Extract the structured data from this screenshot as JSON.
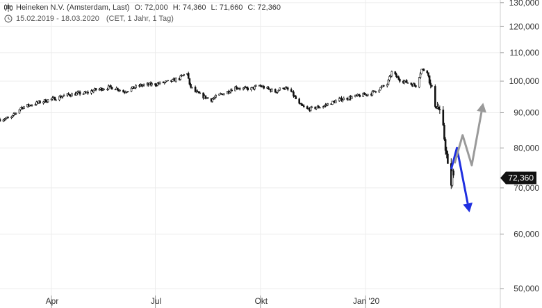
{
  "header": {
    "instrument": "Heineken N.V. (Amsterdam, Last)",
    "open": "O: 72,000",
    "high": "H: 74,360",
    "low": "L: 71,660",
    "close": "C: 72,360",
    "date_range": "15.02.2019 - 18.03.2020",
    "settings": "(CET, 1 Jahr, 1 Tag)",
    "chart_type_icon": "candlestick-icon",
    "range_icon": "clock-icon"
  },
  "last_price_label": "72,360",
  "colors": {
    "candles": "#111111",
    "bearish_arrow": "#1f2fe0",
    "bullish_arrow": "#9a9a9a",
    "last_price_badge": "#111111",
    "grid": "#ececec"
  },
  "chart_data": {
    "type": "candlestick",
    "y_scale": "log",
    "ylim": [
      48000,
      130000
    ],
    "y_ticks": [
      {
        "value": 50000,
        "label": "50,000"
      },
      {
        "value": 60000,
        "label": "60,000"
      },
      {
        "value": 70000,
        "label": "70,000"
      },
      {
        "value": 80000,
        "label": "80,000"
      },
      {
        "value": 90000,
        "label": "90,000"
      },
      {
        "value": 100000,
        "label": "100,000"
      },
      {
        "value": 110000,
        "label": "110,000"
      },
      {
        "value": 120000,
        "label": "120,000"
      },
      {
        "value": 130000,
        "label": "130,000"
      }
    ],
    "x_range": [
      "2019-02-15",
      "2020-04-28"
    ],
    "x_ticks": [
      {
        "date": "2019-04-01",
        "label": "Apr"
      },
      {
        "date": "2019-07-01",
        "label": "Jul"
      },
      {
        "date": "2019-10-01",
        "label": "Okt"
      },
      {
        "date": "2020-01-01",
        "label": "Jan '20"
      }
    ],
    "grid": true,
    "price_path": [
      [
        "2019-02-15",
        88000
      ],
      [
        "2019-02-25",
        88500
      ],
      [
        "2019-03-05",
        91500
      ],
      [
        "2019-03-15",
        92500
      ],
      [
        "2019-03-25",
        93500
      ],
      [
        "2019-04-05",
        94500
      ],
      [
        "2019-04-15",
        95500
      ],
      [
        "2019-04-25",
        96000
      ],
      [
        "2019-05-01",
        96000
      ],
      [
        "2019-05-08",
        97000
      ],
      [
        "2019-05-15",
        97500
      ],
      [
        "2019-05-22",
        98000
      ],
      [
        "2019-05-29",
        97500
      ],
      [
        "2019-06-03",
        96500
      ],
      [
        "2019-06-10",
        97500
      ],
      [
        "2019-06-17",
        98500
      ],
      [
        "2019-06-24",
        98800
      ],
      [
        "2019-07-01",
        99000
      ],
      [
        "2019-07-08",
        99500
      ],
      [
        "2019-07-15",
        100000
      ],
      [
        "2019-07-22",
        101000
      ],
      [
        "2019-07-29",
        103000
      ],
      [
        "2019-07-31",
        98500
      ],
      [
        "2019-08-05",
        96500
      ],
      [
        "2019-08-12",
        95000
      ],
      [
        "2019-08-19",
        94000
      ],
      [
        "2019-08-26",
        95500
      ],
      [
        "2019-09-02",
        96500
      ],
      [
        "2019-09-09",
        98000
      ],
      [
        "2019-09-16",
        97500
      ],
      [
        "2019-09-23",
        97500
      ],
      [
        "2019-09-30",
        98500
      ],
      [
        "2019-10-07",
        97500
      ],
      [
        "2019-10-14",
        96500
      ],
      [
        "2019-10-21",
        98000
      ],
      [
        "2019-10-28",
        96500
      ],
      [
        "2019-11-04",
        92500
      ],
      [
        "2019-11-11",
        91000
      ],
      [
        "2019-11-18",
        91500
      ],
      [
        "2019-11-25",
        92000
      ],
      [
        "2019-12-02",
        93000
      ],
      [
        "2019-12-09",
        94000
      ],
      [
        "2019-12-16",
        94500
      ],
      [
        "2019-12-23",
        95000
      ],
      [
        "2019-12-30",
        95500
      ],
      [
        "2020-01-06",
        96000
      ],
      [
        "2020-01-13",
        97500
      ],
      [
        "2020-01-20",
        99000
      ],
      [
        "2020-01-24",
        103000
      ],
      [
        "2020-01-31",
        100500
      ],
      [
        "2020-02-07",
        99500
      ],
      [
        "2020-02-14",
        98500
      ],
      [
        "2020-02-19",
        104000
      ],
      [
        "2020-02-24",
        103500
      ],
      [
        "2020-02-27",
        98000
      ],
      [
        "2020-03-02",
        93000
      ],
      [
        "2020-03-05",
        91000
      ],
      [
        "2020-03-09",
        85000
      ],
      [
        "2020-03-12",
        78000
      ],
      [
        "2020-03-13",
        75000
      ],
      [
        "2020-03-16",
        71000
      ],
      [
        "2020-03-17",
        73500
      ],
      [
        "2020-03-18",
        72360
      ]
    ],
    "annotations": [
      {
        "kind": "arrow",
        "color": "bearish",
        "points": [
          [
            "2020-03-16",
            74500
          ],
          [
            "2020-03-21",
            80000
          ],
          [
            "2020-04-01",
            64500
          ]
        ]
      },
      {
        "kind": "arrow",
        "color": "bullish",
        "points": [
          [
            "2020-03-19",
            76000
          ],
          [
            "2020-03-26",
            83500
          ],
          [
            "2020-04-03",
            75500
          ],
          [
            "2020-04-13",
            93000
          ]
        ]
      }
    ],
    "last_price": 72360
  }
}
